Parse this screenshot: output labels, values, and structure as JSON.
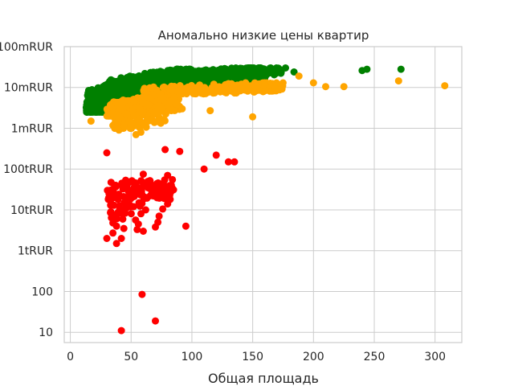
{
  "chart_data": {
    "type": "scatter",
    "title": "Аномально низкие цены квартир",
    "xlabel": "Общая площадь",
    "ylabel": "",
    "xlim": [
      -5,
      322
    ],
    "ylim": [
      5.6,
      100000000
    ],
    "yscale": "log",
    "grid": true,
    "legend": "none",
    "x_ticks": [
      0,
      50,
      100,
      150,
      200,
      250,
      300
    ],
    "y_ticks": [
      {
        "value": 10,
        "label": "10"
      },
      {
        "value": 100,
        "label": "100"
      },
      {
        "value": 1000,
        "label": "1tRUR"
      },
      {
        "value": 10000,
        "label": "10tRUR"
      },
      {
        "value": 100000,
        "label": "100tRUR"
      },
      {
        "value": 1000000,
        "label": "1mRUR"
      },
      {
        "value": 10000000,
        "label": "10mRUR"
      },
      {
        "value": 100000000,
        "label": "100mRUR"
      }
    ],
    "series_colors": {
      "normal": "#008000",
      "low": "#ffa500",
      "anomaly": "#ff0000"
    },
    "series": [
      {
        "key": "normal",
        "clusters": [
          {
            "x_range": [
              13,
              60
            ],
            "y_range": [
              2500000,
              18000000
            ],
            "n": 520
          },
          {
            "x_range": [
              30,
              100
            ],
            "y_range": [
              6000000,
              28000000
            ],
            "n": 520
          },
          {
            "x_range": [
              60,
              160
            ],
            "y_range": [
              12000000,
              30000000
            ],
            "n": 420
          },
          {
            "x_range": [
              100,
              175
            ],
            "y_range": [
              18000000,
              30000000
            ],
            "n": 160
          }
        ],
        "points": [
          [
            177,
            30000000
          ],
          [
            184,
            24000000
          ],
          [
            240,
            26000000
          ],
          [
            244,
            28000000
          ],
          [
            272,
            28000000
          ],
          [
            168,
            26000000
          ],
          [
            172,
            28000000
          ]
        ]
      },
      {
        "key": "low",
        "clusters": [
          {
            "x_range": [
              30,
              90
            ],
            "y_range": [
              2000000,
              7000000
            ],
            "n": 300
          },
          {
            "x_range": [
              60,
              175
            ],
            "y_range": [
              7000000,
              13000000
            ],
            "n": 230
          },
          {
            "x_range": [
              35,
              80
            ],
            "y_range": [
              1000000,
              3000000
            ],
            "n": 70
          }
        ],
        "points": [
          [
            17,
            1500000
          ],
          [
            40,
            900000
          ],
          [
            50,
            1100000
          ],
          [
            54,
            700000
          ],
          [
            58,
            800000
          ],
          [
            64,
            1500000
          ],
          [
            115,
            2700000
          ],
          [
            150,
            1900000
          ],
          [
            188,
            19000000
          ],
          [
            200,
            13000000
          ],
          [
            210,
            10500000
          ],
          [
            225,
            10500000
          ],
          [
            270,
            14500000
          ],
          [
            308,
            11000000
          ],
          [
            72,
            3200000
          ],
          [
            82,
            4500000
          ],
          [
            92,
            3000000
          ]
        ]
      },
      {
        "key": "anomaly",
        "clusters": [
          {
            "x_range": [
              30,
              85
            ],
            "y_range": [
              18000,
              55000
            ],
            "n": 110
          },
          {
            "x_range": [
              32,
              60
            ],
            "y_range": [
              5500,
              16000
            ],
            "n": 30
          }
        ],
        "points": [
          [
            30,
            250000
          ],
          [
            42,
            11
          ],
          [
            59,
            85
          ],
          [
            70,
            19
          ],
          [
            78,
            300000
          ],
          [
            90,
            270000
          ],
          [
            110,
            100000
          ],
          [
            120,
            220000
          ],
          [
            130,
            150000
          ],
          [
            135,
            150000
          ],
          [
            60,
            75000
          ],
          [
            80,
            70000
          ],
          [
            84,
            55000
          ],
          [
            35,
            4800
          ],
          [
            38,
            4000
          ],
          [
            30,
            2000
          ],
          [
            35,
            2700
          ],
          [
            38,
            1500
          ],
          [
            42,
            2000
          ],
          [
            44,
            3500
          ],
          [
            55,
            3300
          ],
          [
            60,
            3000
          ],
          [
            70,
            3800
          ],
          [
            72,
            5000
          ],
          [
            95,
            4000
          ],
          [
            56,
            4500
          ],
          [
            62,
            10000
          ],
          [
            76,
            10500
          ],
          [
            73,
            7000
          ],
          [
            80,
            14000
          ]
        ]
      }
    ]
  }
}
